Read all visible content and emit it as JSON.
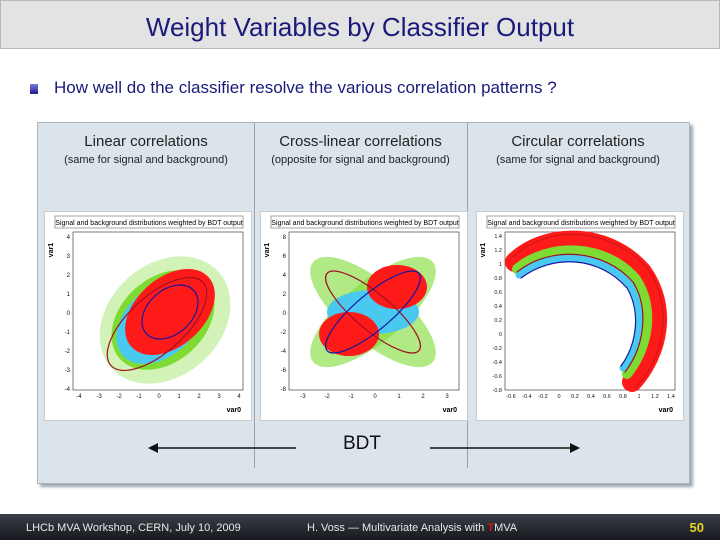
{
  "title": "Weight Variables by Classifier Output",
  "question": "How well do the classifier resolve the various correlation patterns ?",
  "columns": [
    {
      "heading": "Linear correlations",
      "subheading": "(same for signal and background)"
    },
    {
      "heading": "Cross-linear correlations",
      "subheading": "(opposite for signal and background)"
    },
    {
      "heading": "Circular correlations",
      "subheading": "(same for signal and background)"
    }
  ],
  "plot_title": "Signal and background distributions weighted by BDT output",
  "x_axis_label": "var0",
  "y_axis_label": "var1",
  "plots": [
    {
      "xticks": [
        "-4",
        "-3",
        "-2",
        "-1",
        "0",
        "1",
        "2",
        "3",
        "4"
      ],
      "yticks": [
        "4",
        "3",
        "2",
        "1",
        "0",
        "-1",
        "-2",
        "-3",
        "-4"
      ]
    },
    {
      "xticks": [
        "-3",
        "-2",
        "-1",
        "0",
        "1",
        "2",
        "3"
      ],
      "yticks": [
        "8",
        "6",
        "4",
        "2",
        "0",
        "-2",
        "-4",
        "-6",
        "-8"
      ]
    },
    {
      "xticks": [
        "-0.6",
        "-0.4",
        "-0.2",
        "0",
        "0.2",
        "0.4",
        "0.6",
        "0.8",
        "1",
        "1.2",
        "1.4"
      ],
      "yticks": [
        "1.4",
        "1.2",
        "1",
        "0.8",
        "0.6",
        "0.4",
        "0.2",
        "0",
        "-0.2",
        "-0.4",
        "-0.6",
        "-0.8"
      ]
    }
  ],
  "bdt_label": "BDT",
  "footer": {
    "left": "LHCb MVA Workshop, CERN, July 10, 2009",
    "center_prefix": "H. Voss ― Multivariate Analysis with ",
    "center_t": "T",
    "center_suffix": "MVA",
    "page": "50"
  },
  "colors": {
    "title": "#1a1a7a",
    "signal": "#ff1a1a",
    "background_cyan": "#49c8f0",
    "background_green": "#7ddb34",
    "contour_red": "#a01020",
    "contour_blue": "#1616a0"
  }
}
